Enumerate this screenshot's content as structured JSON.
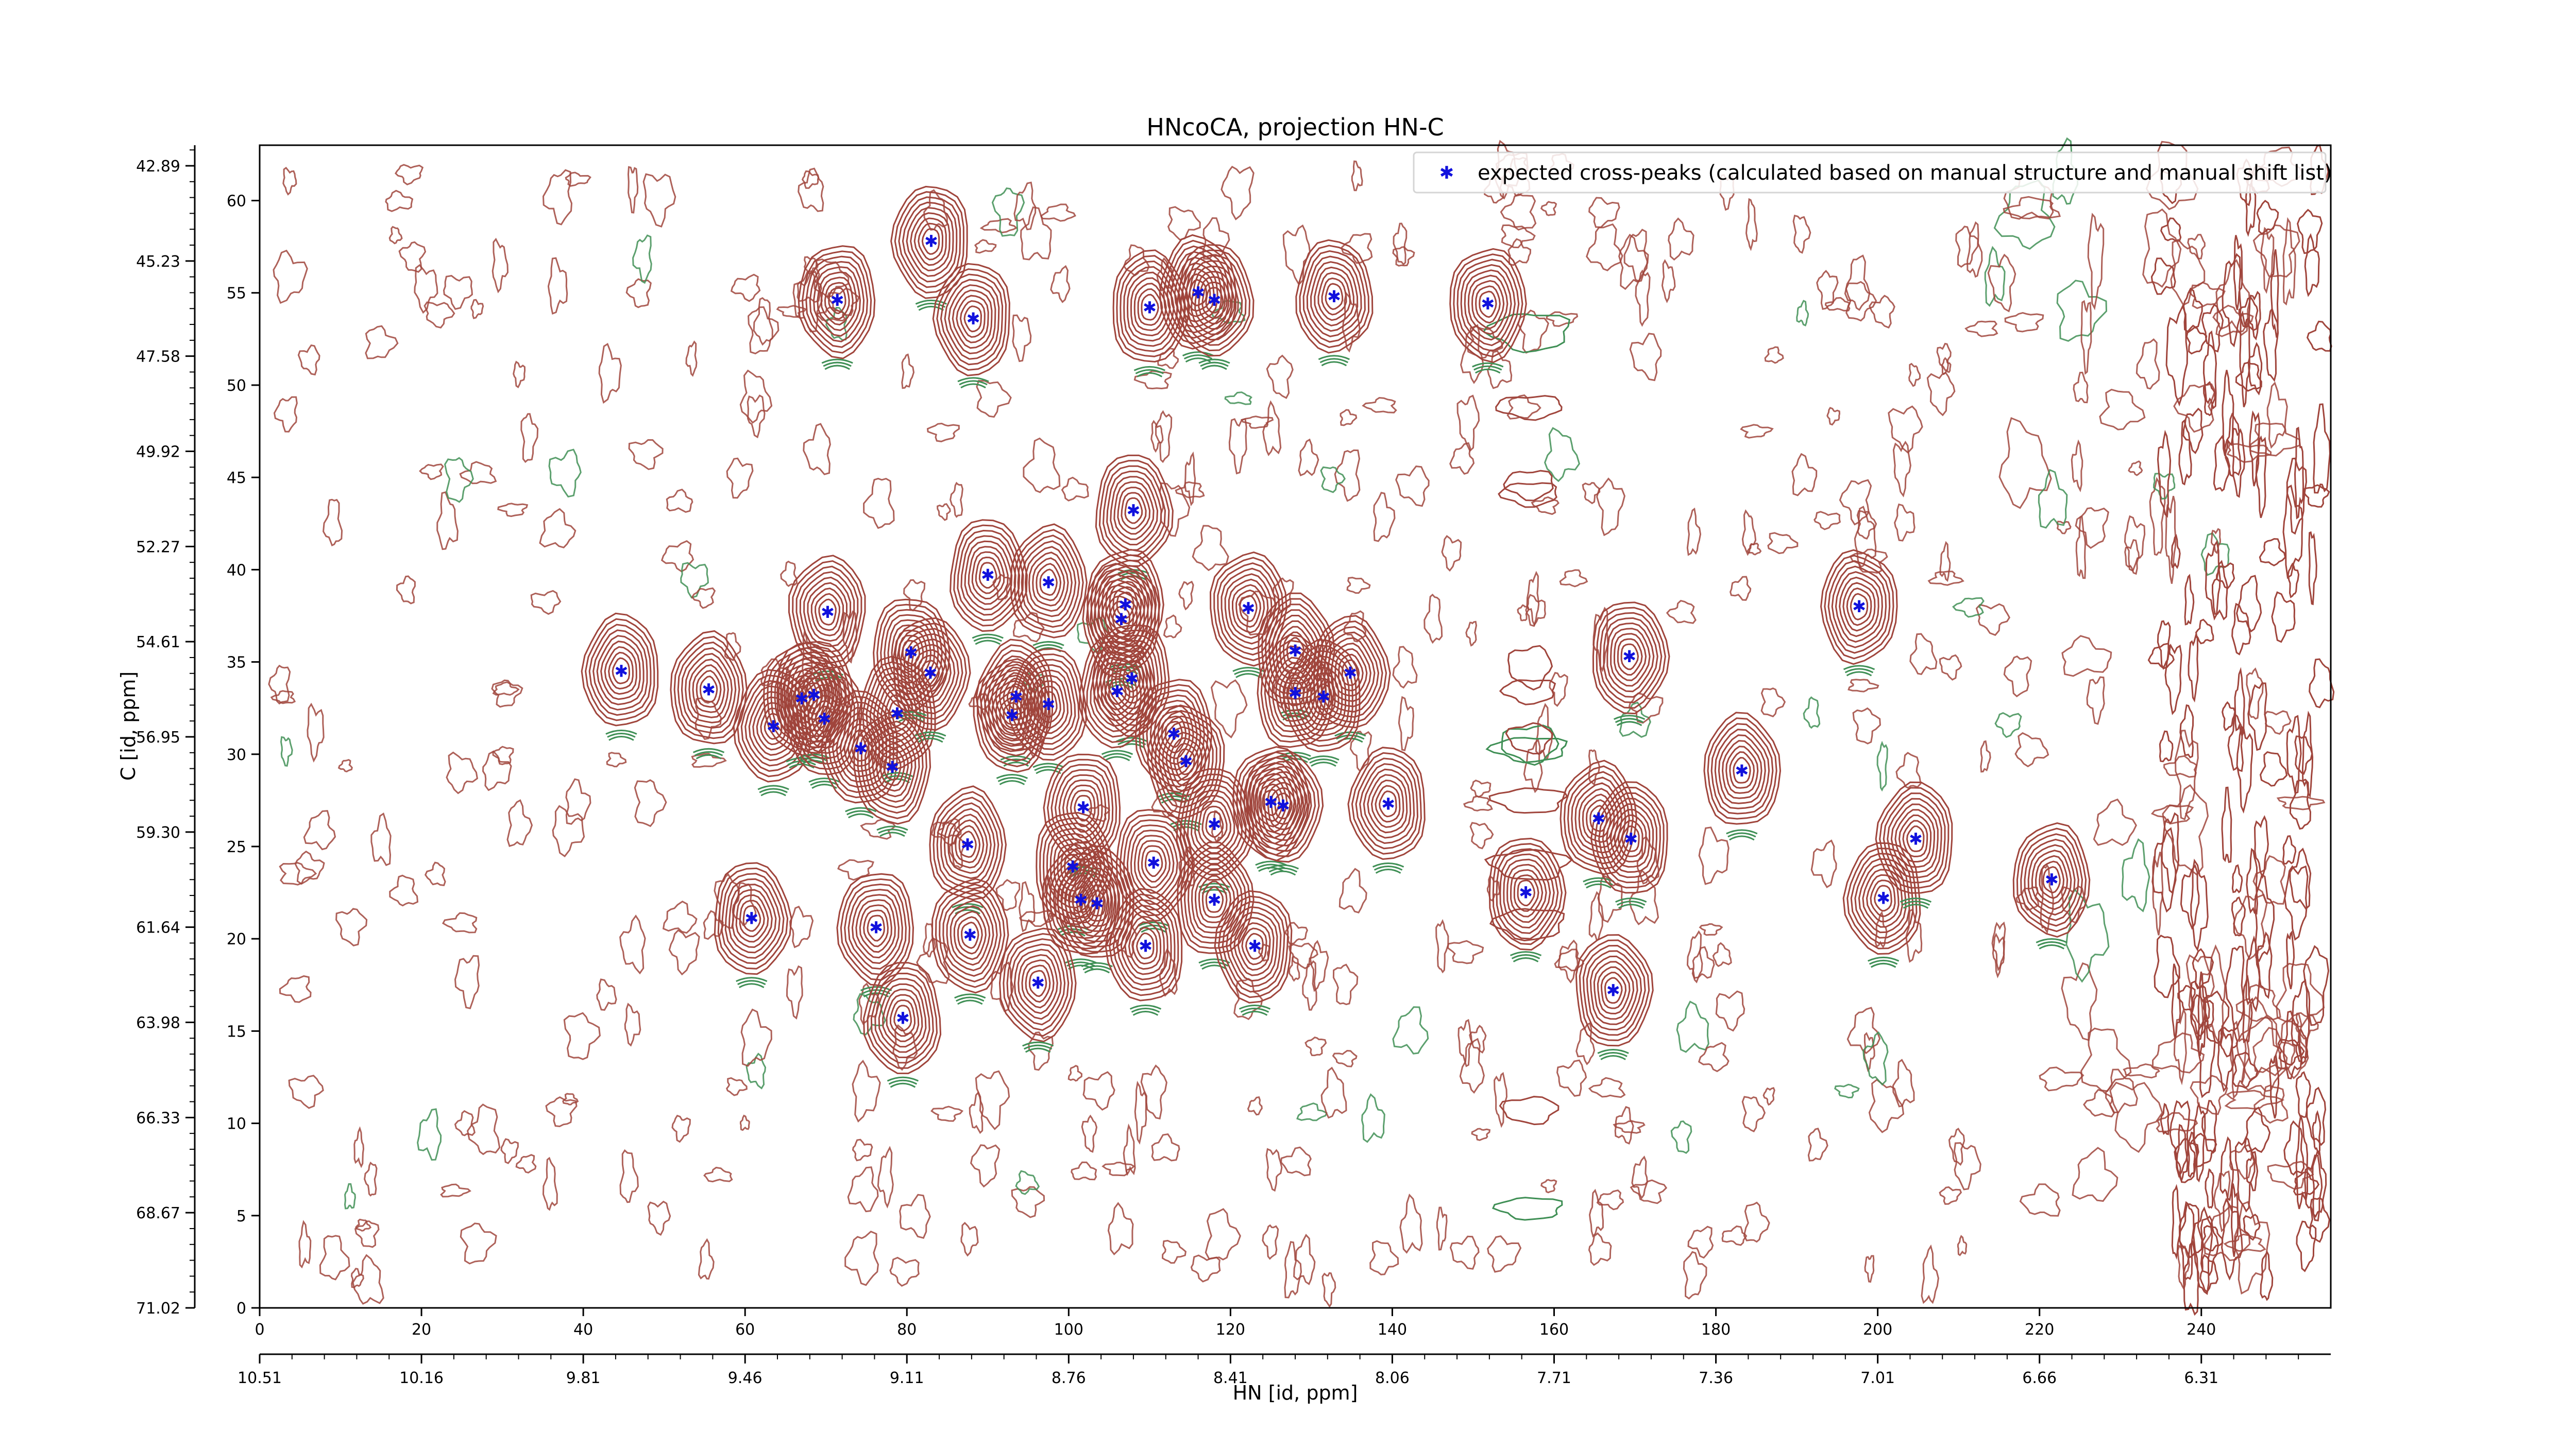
{
  "chart_data": {
    "type": "scatter",
    "title": "HNcoCA, projection HN-C",
    "xlabel": "HN [id, ppm]",
    "ylabel": "C [id, ppm]",
    "xlim": [
      0,
      256
    ],
    "ylim": [
      0,
      63
    ],
    "x_index_ticks": [
      "0",
      "20",
      "40",
      "60",
      "80",
      "100",
      "120",
      "140",
      "160",
      "180",
      "200",
      "220",
      "240"
    ],
    "y_index_ticks": [
      "0",
      "5",
      "10",
      "15",
      "20",
      "25",
      "30",
      "35",
      "40",
      "45",
      "50",
      "55",
      "60"
    ],
    "x_ppm_ticks": [
      "10.51",
      "10.16",
      "9.81",
      "9.46",
      "9.11",
      "8.76",
      "8.41",
      "8.06",
      "7.71",
      "7.36",
      "7.01",
      "6.66",
      "6.31"
    ],
    "y_ppm_ticks": [
      "71.02",
      "68.67",
      "66.33",
      "63.98",
      "61.64",
      "59.30",
      "56.95",
      "54.61",
      "52.27",
      "49.92",
      "47.58",
      "45.23",
      "42.89"
    ],
    "legend": {
      "label": "expected cross-peaks (calculated based on manual structure and manual shift list)",
      "placement": "top-right"
    },
    "colors": {
      "positive_contours": "#a0453c",
      "negative_contours": "#3f8f55",
      "peak_marker": "#1111dd"
    },
    "series": [
      {
        "name": "expected cross-peaks (calculated based on manual structure and manual shift list)",
        "points": [
          [
            71.4,
            54.6
          ],
          [
            83,
            57.8
          ],
          [
            88.2,
            53.6
          ],
          [
            110,
            54.2
          ],
          [
            116,
            55
          ],
          [
            118,
            54.6
          ],
          [
            132.8,
            54.8
          ],
          [
            151.8,
            54.4
          ],
          [
            108,
            43.2
          ],
          [
            90,
            39.7
          ],
          [
            97.5,
            39.3
          ],
          [
            70.2,
            37.7
          ],
          [
            44.7,
            34.5
          ],
          [
            55.5,
            33.5
          ],
          [
            63.5,
            31.5
          ],
          [
            67,
            33
          ],
          [
            68.5,
            33.2
          ],
          [
            69.8,
            31.9
          ],
          [
            74.3,
            30.3
          ],
          [
            78.8,
            32.2
          ],
          [
            80.5,
            35.5
          ],
          [
            82.9,
            34.4
          ],
          [
            78.2,
            29.3
          ],
          [
            93.5,
            33.1
          ],
          [
            93,
            32.1
          ],
          [
            97.5,
            32.7
          ],
          [
            107,
            38.1
          ],
          [
            106.5,
            37.3
          ],
          [
            107.8,
            34.1
          ],
          [
            106,
            33.4
          ],
          [
            122.2,
            37.9
          ],
          [
            128,
            35.6
          ],
          [
            134.8,
            34.4
          ],
          [
            128,
            33.3
          ],
          [
            131.5,
            33.1
          ],
          [
            113,
            31.1
          ],
          [
            114.5,
            29.6
          ],
          [
            118,
            26.2
          ],
          [
            125,
            27.4
          ],
          [
            126.5,
            27.2
          ],
          [
            139.5,
            27.3
          ],
          [
            169.3,
            35.3
          ],
          [
            183.2,
            29.1
          ],
          [
            197.7,
            38
          ],
          [
            118,
            22.1
          ],
          [
            123,
            19.6
          ],
          [
            110.5,
            24.1
          ],
          [
            101.8,
            27.1
          ],
          [
            100.5,
            23.9
          ],
          [
            101.5,
            22.1
          ],
          [
            103.5,
            21.9
          ],
          [
            109.5,
            19.6
          ],
          [
            165.5,
            26.5
          ],
          [
            169.5,
            25.4
          ],
          [
            87.5,
            25.1
          ],
          [
            87.8,
            20.2
          ],
          [
            60.8,
            21.1
          ],
          [
            76.2,
            20.6
          ],
          [
            79.5,
            15.7
          ],
          [
            96.2,
            17.6
          ],
          [
            167.3,
            17.2
          ],
          [
            156.5,
            22.5
          ],
          [
            200.7,
            22.2
          ],
          [
            204.7,
            25.4
          ],
          [
            221.5,
            23.2
          ]
        ]
      }
    ]
  }
}
